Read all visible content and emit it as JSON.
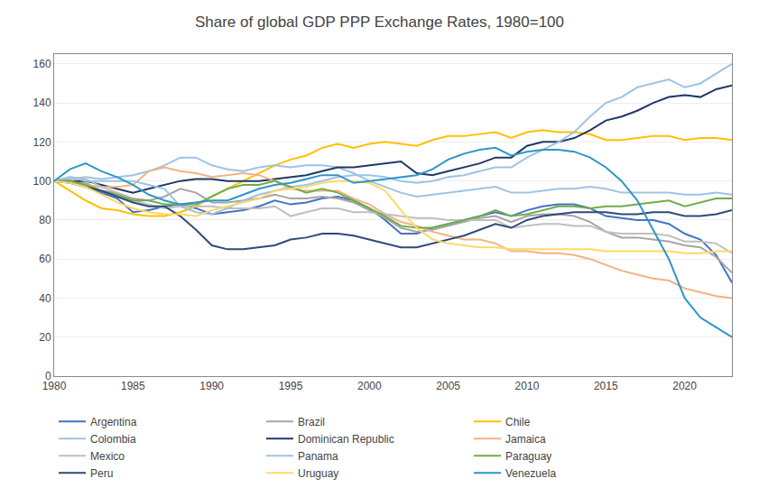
{
  "chart_data": {
    "type": "line",
    "title": "Share of global GDP PPP Exchange Rates, 1980=100",
    "x": [
      1980,
      1981,
      1982,
      1983,
      1984,
      1985,
      1986,
      1987,
      1988,
      1989,
      1990,
      1991,
      1992,
      1993,
      1994,
      1995,
      1996,
      1997,
      1998,
      1999,
      2000,
      2001,
      2002,
      2003,
      2004,
      2005,
      2006,
      2007,
      2008,
      2009,
      2010,
      2011,
      2012,
      2013,
      2014,
      2015,
      2016,
      2017,
      2018,
      2019,
      2020,
      2021,
      2022,
      2023
    ],
    "series": [
      {
        "name": "Argentina",
        "color": "#4472C4",
        "values": [
          100,
          100,
          97,
          94,
          91,
          84,
          85,
          87,
          88,
          86,
          83,
          84,
          85,
          87,
          90,
          88,
          89,
          91,
          92,
          90,
          86,
          80,
          73,
          73,
          76,
          78,
          80,
          82,
          84,
          82,
          85,
          87,
          88,
          88,
          86,
          82,
          81,
          80,
          80,
          78,
          73,
          70,
          62,
          48
        ]
      },
      {
        "name": "Brazil",
        "color": "#A5A5A5",
        "values": [
          100,
          100,
          99,
          95,
          94,
          91,
          90,
          92,
          96,
          94,
          89,
          89,
          90,
          91,
          93,
          91,
          91,
          92,
          91,
          89,
          85,
          81,
          76,
          74,
          75,
          77,
          79,
          81,
          82,
          79,
          82,
          83,
          83,
          82,
          79,
          74,
          71,
          71,
          70,
          69,
          67,
          66,
          61,
          53
        ]
      },
      {
        "name": "Chile",
        "color": "#FFC000",
        "values": [
          100,
          95,
          90,
          86,
          85,
          83,
          82,
          82,
          84,
          87,
          92,
          96,
          100,
          104,
          108,
          111,
          113,
          117,
          119,
          117,
          119,
          120,
          119,
          118,
          121,
          123,
          123,
          124,
          125,
          122,
          125,
          126,
          125,
          125,
          124,
          121,
          121,
          122,
          123,
          123,
          121,
          122,
          122,
          121
        ]
      },
      {
        "name": "Colombia",
        "color": "#9DC3E6",
        "values": [
          100,
          101,
          102,
          101,
          102,
          103,
          105,
          108,
          112,
          112,
          108,
          106,
          105,
          107,
          108,
          107,
          108,
          108,
          107,
          104,
          100,
          97,
          94,
          92,
          93,
          94,
          95,
          96,
          97,
          94,
          94,
          95,
          96,
          96,
          97,
          96,
          94,
          94,
          94,
          94,
          93,
          93,
          94,
          93
        ]
      },
      {
        "name": "Dominican Republic",
        "color": "#203864",
        "values": [
          100,
          100,
          100,
          98,
          96,
          94,
          96,
          98,
          100,
          101,
          101,
          100,
          100,
          100,
          101,
          102,
          103,
          105,
          107,
          107,
          108,
          109,
          110,
          104,
          103,
          105,
          107,
          109,
          112,
          112,
          118,
          120,
          120,
          122,
          126,
          131,
          133,
          136,
          140,
          143,
          144,
          143,
          147,
          149
        ]
      },
      {
        "name": "Jamaica",
        "color": "#F4B183",
        "values": [
          100,
          100,
          98,
          97,
          97,
          98,
          105,
          107,
          105,
          104,
          102,
          103,
          104,
          103,
          100,
          96,
          95,
          95,
          95,
          91,
          88,
          83,
          79,
          77,
          74,
          72,
          70,
          70,
          68,
          64,
          64,
          63,
          63,
          62,
          60,
          57,
          54,
          52,
          50,
          49,
          45,
          43,
          41,
          40
        ]
      },
      {
        "name": "Mexico",
        "color": "#BFBFBF",
        "values": [
          100,
          102,
          101,
          97,
          94,
          90,
          88,
          86,
          87,
          87,
          87,
          86,
          86,
          86,
          87,
          82,
          84,
          86,
          86,
          84,
          84,
          83,
          82,
          81,
          81,
          80,
          80,
          80,
          80,
          76,
          77,
          78,
          78,
          77,
          77,
          74,
          73,
          73,
          73,
          72,
          69,
          69,
          68,
          63
        ]
      },
      {
        "name": "Panama",
        "color": "#9DC3E6",
        "values": [
          100,
          102,
          100,
          100,
          100,
          100,
          98,
          96,
          87,
          84,
          83,
          86,
          90,
          93,
          95,
          97,
          98,
          100,
          102,
          103,
          103,
          102,
          100,
          99,
          100,
          102,
          103,
          105,
          107,
          107,
          112,
          116,
          120,
          125,
          133,
          140,
          143,
          148,
          150,
          152,
          148,
          150,
          155,
          160
        ]
      },
      {
        "name": "Paraguay",
        "color": "#70AD47",
        "values": [
          100,
          100,
          98,
          95,
          93,
          90,
          90,
          88,
          88,
          88,
          92,
          96,
          98,
          98,
          100,
          97,
          94,
          96,
          94,
          90,
          86,
          82,
          77,
          76,
          76,
          78,
          80,
          82,
          85,
          82,
          83,
          85,
          87,
          87,
          86,
          87,
          87,
          88,
          89,
          90,
          87,
          89,
          91,
          91
        ]
      },
      {
        "name": "Peru",
        "color": "#2E4A7A",
        "values": [
          100,
          99,
          97,
          95,
          92,
          89,
          87,
          87,
          82,
          75,
          67,
          65,
          65,
          66,
          67,
          70,
          71,
          73,
          73,
          72,
          70,
          68,
          66,
          66,
          68,
          70,
          72,
          75,
          78,
          76,
          80,
          82,
          83,
          84,
          84,
          84,
          83,
          83,
          84,
          84,
          82,
          82,
          83,
          85
        ]
      },
      {
        "name": "Uruguay",
        "color": "#FFD966",
        "values": [
          100,
          99,
          97,
          93,
          89,
          86,
          84,
          83,
          83,
          82,
          85,
          87,
          89,
          91,
          95,
          96,
          97,
          99,
          100,
          100,
          99,
          95,
          85,
          76,
          70,
          68,
          67,
          66,
          66,
          65,
          65,
          65,
          65,
          65,
          65,
          64,
          64,
          64,
          64,
          64,
          63,
          63,
          64,
          64
        ]
      },
      {
        "name": "Venezuela",
        "color": "#2E96C8",
        "values": [
          100,
          106,
          109,
          105,
          102,
          98,
          93,
          90,
          88,
          89,
          90,
          90,
          93,
          96,
          98,
          99,
          101,
          103,
          103,
          99,
          100,
          101,
          102,
          103,
          106,
          111,
          114,
          116,
          117,
          113,
          115,
          116,
          116,
          115,
          112,
          107,
          100,
          90,
          75,
          60,
          40,
          30,
          25,
          20
        ]
      }
    ],
    "xlim": [
      1980,
      2023
    ],
    "xticks": [
      1980,
      1985,
      1990,
      1995,
      2000,
      2005,
      2010,
      2015,
      2020
    ],
    "ylim": [
      0,
      165
    ],
    "yticks": [
      0,
      20,
      40,
      60,
      80,
      100,
      120,
      140,
      160
    ],
    "grid": "y",
    "legend": "bottom"
  }
}
